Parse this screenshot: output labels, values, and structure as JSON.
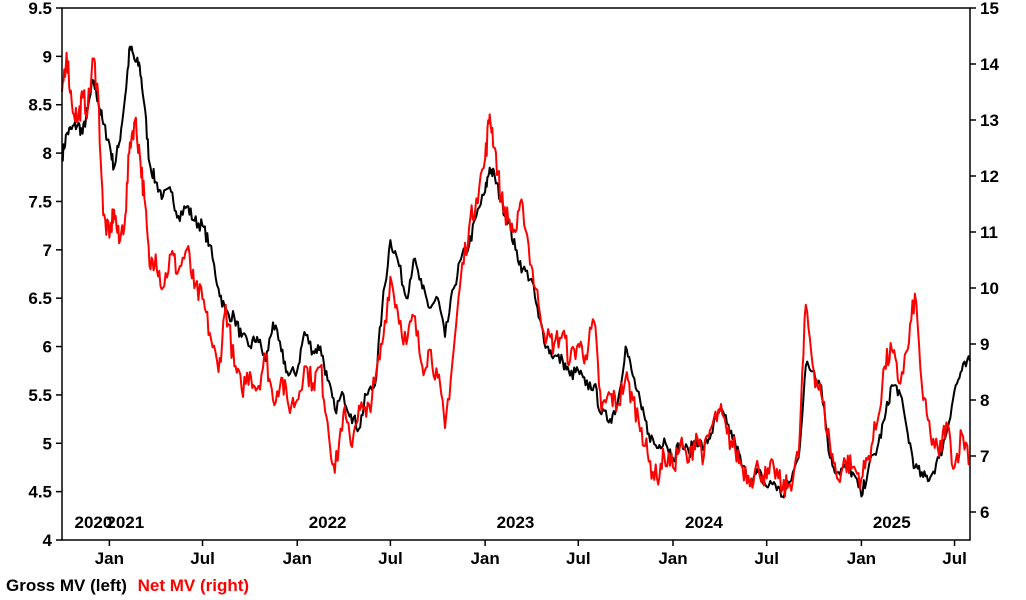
{
  "chart_data": {
    "type": "line",
    "title": "",
    "xlabel": "",
    "y_left": {
      "min": 4,
      "max": 9.5,
      "ticks": [
        "9.5",
        "9",
        "8.5",
        "8",
        "7.5",
        "7",
        "6.5",
        "6",
        "5.5",
        "5",
        "4.5",
        "4"
      ]
    },
    "y_right": {
      "min": 5.5,
      "max": 15,
      "ticks": [
        "15",
        "14",
        "13",
        "12",
        "11",
        "10",
        "9",
        "8",
        "7",
        "6"
      ]
    },
    "x_range": [
      "2020-10-01",
      "2025-07-31"
    ],
    "x_month_ticks": [
      {
        "date": "2021-01-01",
        "label": "Jan"
      },
      {
        "date": "2021-07-01",
        "label": "Jul"
      },
      {
        "date": "2022-01-01",
        "label": "Jan"
      },
      {
        "date": "2022-07-01",
        "label": "Jul"
      },
      {
        "date": "2023-01-01",
        "label": "Jan"
      },
      {
        "date": "2023-07-01",
        "label": "Jul"
      },
      {
        "date": "2024-01-01",
        "label": "Jan"
      },
      {
        "date": "2024-07-01",
        "label": "Jul"
      },
      {
        "date": "2025-01-01",
        "label": "Jan"
      },
      {
        "date": "2025-07-01",
        "label": "Jul"
      }
    ],
    "x_year_labels": [
      {
        "date": "2020-12-01",
        "label": "2020"
      },
      {
        "date": "2021-02-01",
        "label": "2021"
      },
      {
        "date": "2022-03-01",
        "label": "2022"
      },
      {
        "date": "2023-03-01",
        "label": "2023"
      },
      {
        "date": "2024-03-01",
        "label": "2024"
      },
      {
        "date": "2025-03-01",
        "label": "2025"
      }
    ],
    "legend": "bottom-left",
    "series": [
      {
        "name": "Gross MV (left)",
        "axis": "left",
        "color": "#000000",
        "points": [
          [
            "2020-10-01",
            7.95
          ],
          [
            "2020-10-10",
            8.2
          ],
          [
            "2020-10-20",
            8.25
          ],
          [
            "2020-11-01",
            8.3
          ],
          [
            "2020-11-10",
            8.2
          ],
          [
            "2020-11-20",
            8.45
          ],
          [
            "2020-12-01",
            8.75
          ],
          [
            "2020-12-10",
            8.55
          ],
          [
            "2020-12-20",
            8.3
          ],
          [
            "2021-01-01",
            8.1
          ],
          [
            "2021-01-10",
            7.85
          ],
          [
            "2021-01-20",
            8.1
          ],
          [
            "2021-02-01",
            8.6
          ],
          [
            "2021-02-10",
            9.1
          ],
          [
            "2021-02-20",
            8.95
          ],
          [
            "2021-03-01",
            8.9
          ],
          [
            "2021-03-10",
            8.5
          ],
          [
            "2021-03-20",
            7.9
          ],
          [
            "2021-04-01",
            7.7
          ],
          [
            "2021-04-15",
            7.55
          ],
          [
            "2021-05-01",
            7.6
          ],
          [
            "2021-05-15",
            7.35
          ],
          [
            "2021-06-01",
            7.45
          ],
          [
            "2021-06-15",
            7.3
          ],
          [
            "2021-07-01",
            7.25
          ],
          [
            "2021-07-15",
            7.05
          ],
          [
            "2021-08-01",
            6.6
          ],
          [
            "2021-08-15",
            6.35
          ],
          [
            "2021-09-01",
            6.3
          ],
          [
            "2021-09-15",
            6.1
          ],
          [
            "2021-10-01",
            6.0
          ],
          [
            "2021-10-15",
            6.1
          ],
          [
            "2021-11-01",
            5.85
          ],
          [
            "2021-11-15",
            6.25
          ],
          [
            "2021-12-01",
            5.95
          ],
          [
            "2021-12-15",
            5.7
          ],
          [
            "2022-01-01",
            5.75
          ],
          [
            "2022-01-15",
            6.15
          ],
          [
            "2022-02-01",
            5.95
          ],
          [
            "2022-02-15",
            6.0
          ],
          [
            "2022-03-01",
            5.65
          ],
          [
            "2022-03-15",
            5.35
          ],
          [
            "2022-04-01",
            5.5
          ],
          [
            "2022-04-15",
            5.3
          ],
          [
            "2022-05-01",
            5.15
          ],
          [
            "2022-05-15",
            5.5
          ],
          [
            "2022-06-01",
            5.6
          ],
          [
            "2022-06-15",
            6.4
          ],
          [
            "2022-07-01",
            7.1
          ],
          [
            "2022-07-15",
            6.9
          ],
          [
            "2022-08-01",
            6.5
          ],
          [
            "2022-08-15",
            6.9
          ],
          [
            "2022-09-01",
            6.6
          ],
          [
            "2022-09-15",
            6.4
          ],
          [
            "2022-10-01",
            6.5
          ],
          [
            "2022-10-15",
            6.1
          ],
          [
            "2022-11-01",
            6.6
          ],
          [
            "2022-11-15",
            6.9
          ],
          [
            "2022-12-01",
            7.05
          ],
          [
            "2022-12-15",
            7.35
          ],
          [
            "2023-01-01",
            7.6
          ],
          [
            "2023-01-10",
            7.85
          ],
          [
            "2023-01-20",
            7.75
          ],
          [
            "2023-02-01",
            7.5
          ],
          [
            "2023-02-15",
            7.3
          ],
          [
            "2023-03-01",
            7.0
          ],
          [
            "2023-03-15",
            6.8
          ],
          [
            "2023-04-01",
            6.7
          ],
          [
            "2023-04-15",
            6.3
          ],
          [
            "2023-05-01",
            6.0
          ],
          [
            "2023-05-15",
            5.9
          ],
          [
            "2023-06-01",
            5.85
          ],
          [
            "2023-06-15",
            5.7
          ],
          [
            "2023-07-01",
            5.75
          ],
          [
            "2023-07-15",
            5.6
          ],
          [
            "2023-08-01",
            5.6
          ],
          [
            "2023-08-15",
            5.3
          ],
          [
            "2023-09-01",
            5.25
          ],
          [
            "2023-09-15",
            5.4
          ],
          [
            "2023-10-01",
            6.0
          ],
          [
            "2023-10-15",
            5.7
          ],
          [
            "2023-11-01",
            5.35
          ],
          [
            "2023-11-15",
            5.1
          ],
          [
            "2023-12-01",
            4.95
          ],
          [
            "2023-12-15",
            5.05
          ],
          [
            "2024-01-01",
            4.85
          ],
          [
            "2024-01-15",
            5.0
          ],
          [
            "2024-02-01",
            4.9
          ],
          [
            "2024-02-15",
            5.05
          ],
          [
            "2024-03-01",
            4.95
          ],
          [
            "2024-03-15",
            5.1
          ],
          [
            "2024-04-01",
            5.35
          ],
          [
            "2024-04-15",
            5.2
          ],
          [
            "2024-05-01",
            5.0
          ],
          [
            "2024-05-15",
            4.75
          ],
          [
            "2024-06-01",
            4.6
          ],
          [
            "2024-06-15",
            4.7
          ],
          [
            "2024-07-01",
            4.55
          ],
          [
            "2024-07-15",
            4.6
          ],
          [
            "2024-08-01",
            4.45
          ],
          [
            "2024-08-15",
            4.6
          ],
          [
            "2024-09-01",
            4.85
          ],
          [
            "2024-09-15",
            5.8
          ],
          [
            "2024-10-01",
            5.75
          ],
          [
            "2024-10-15",
            5.6
          ],
          [
            "2024-11-01",
            4.85
          ],
          [
            "2024-11-15",
            4.7
          ],
          [
            "2024-12-01",
            4.75
          ],
          [
            "2024-12-15",
            4.7
          ],
          [
            "2025-01-01",
            4.45
          ],
          [
            "2025-01-15",
            4.75
          ],
          [
            "2025-02-01",
            4.95
          ],
          [
            "2025-02-15",
            5.25
          ],
          [
            "2025-03-01",
            5.6
          ],
          [
            "2025-03-15",
            5.55
          ],
          [
            "2025-04-01",
            5.1
          ],
          [
            "2025-04-15",
            4.75
          ],
          [
            "2025-05-01",
            4.65
          ],
          [
            "2025-05-15",
            4.65
          ],
          [
            "2025-06-01",
            4.85
          ],
          [
            "2025-06-15",
            5.1
          ],
          [
            "2025-07-01",
            5.55
          ],
          [
            "2025-07-15",
            5.75
          ],
          [
            "2025-07-31",
            5.85
          ]
        ]
      },
      {
        "name": "Net MV (right)",
        "axis": "right",
        "color": "#ff0000",
        "points": [
          [
            "2020-10-01",
            13.5
          ],
          [
            "2020-10-10",
            14.2
          ],
          [
            "2020-10-20",
            13.3
          ],
          [
            "2020-11-01",
            13.0
          ],
          [
            "2020-11-10",
            13.4
          ],
          [
            "2020-11-20",
            13.2
          ],
          [
            "2020-12-01",
            14.1
          ],
          [
            "2020-12-10",
            13.5
          ],
          [
            "2020-12-20",
            11.3
          ],
          [
            "2021-01-01",
            10.9
          ],
          [
            "2021-01-10",
            11.4
          ],
          [
            "2021-01-20",
            10.8
          ],
          [
            "2021-02-01",
            11.3
          ],
          [
            "2021-02-10",
            12.6
          ],
          [
            "2021-02-20",
            13.0
          ],
          [
            "2021-03-01",
            12.4
          ],
          [
            "2021-03-10",
            11.6
          ],
          [
            "2021-03-20",
            10.4
          ],
          [
            "2021-04-01",
            10.6
          ],
          [
            "2021-04-15",
            10.0
          ],
          [
            "2021-05-01",
            10.6
          ],
          [
            "2021-05-15",
            10.3
          ],
          [
            "2021-06-01",
            10.7
          ],
          [
            "2021-06-15",
            10.0
          ],
          [
            "2021-07-01",
            9.8
          ],
          [
            "2021-07-15",
            9.2
          ],
          [
            "2021-08-01",
            8.5
          ],
          [
            "2021-08-15",
            9.7
          ],
          [
            "2021-09-01",
            8.6
          ],
          [
            "2021-09-15",
            8.2
          ],
          [
            "2021-10-01",
            8.5
          ],
          [
            "2021-10-15",
            8.2
          ],
          [
            "2021-11-01",
            8.8
          ],
          [
            "2021-11-15",
            8.0
          ],
          [
            "2021-12-01",
            8.4
          ],
          [
            "2021-12-15",
            7.9
          ],
          [
            "2022-01-01",
            8.0
          ],
          [
            "2022-01-15",
            8.6
          ],
          [
            "2022-02-01",
            8.3
          ],
          [
            "2022-02-15",
            8.6
          ],
          [
            "2022-03-01",
            7.6
          ],
          [
            "2022-03-15",
            6.7
          ],
          [
            "2022-04-01",
            7.8
          ],
          [
            "2022-04-15",
            7.2
          ],
          [
            "2022-05-01",
            7.9
          ],
          [
            "2022-05-15",
            7.7
          ],
          [
            "2022-06-01",
            8.3
          ],
          [
            "2022-06-15",
            9.0
          ],
          [
            "2022-07-01",
            10.2
          ],
          [
            "2022-07-15",
            9.6
          ],
          [
            "2022-08-01",
            9.0
          ],
          [
            "2022-08-15",
            9.5
          ],
          [
            "2022-09-01",
            8.6
          ],
          [
            "2022-09-15",
            8.9
          ],
          [
            "2022-10-01",
            8.4
          ],
          [
            "2022-10-15",
            7.5
          ],
          [
            "2022-11-01",
            8.9
          ],
          [
            "2022-11-15",
            10.2
          ],
          [
            "2022-12-01",
            11.1
          ],
          [
            "2022-12-15",
            11.6
          ],
          [
            "2023-01-01",
            12.3
          ],
          [
            "2023-01-10",
            13.1
          ],
          [
            "2023-01-20",
            12.5
          ],
          [
            "2023-02-01",
            11.6
          ],
          [
            "2023-02-15",
            11.2
          ],
          [
            "2023-03-01",
            11.0
          ],
          [
            "2023-03-15",
            11.5
          ],
          [
            "2023-04-01",
            10.4
          ],
          [
            "2023-04-15",
            9.7
          ],
          [
            "2023-05-01",
            9.1
          ],
          [
            "2023-05-15",
            9.0
          ],
          [
            "2023-06-01",
            9.2
          ],
          [
            "2023-06-15",
            8.7
          ],
          [
            "2023-07-01",
            9.0
          ],
          [
            "2023-07-15",
            8.8
          ],
          [
            "2023-08-01",
            9.4
          ],
          [
            "2023-08-15",
            7.8
          ],
          [
            "2023-09-01",
            8.1
          ],
          [
            "2023-09-15",
            7.9
          ],
          [
            "2023-10-01",
            8.4
          ],
          [
            "2023-10-15",
            8.0
          ],
          [
            "2023-11-01",
            7.5
          ],
          [
            "2023-11-15",
            6.9
          ],
          [
            "2023-12-01",
            6.6
          ],
          [
            "2023-12-15",
            7.0
          ],
          [
            "2024-01-01",
            6.8
          ],
          [
            "2024-01-15",
            7.2
          ],
          [
            "2024-02-01",
            6.9
          ],
          [
            "2024-02-15",
            7.4
          ],
          [
            "2024-03-01",
            7.0
          ],
          [
            "2024-03-15",
            7.5
          ],
          [
            "2024-04-01",
            7.8
          ],
          [
            "2024-04-15",
            7.4
          ],
          [
            "2024-05-01",
            7.1
          ],
          [
            "2024-05-15",
            6.8
          ],
          [
            "2024-06-01",
            6.6
          ],
          [
            "2024-06-15",
            6.8
          ],
          [
            "2024-07-01",
            6.6
          ],
          [
            "2024-07-15",
            6.8
          ],
          [
            "2024-08-01",
            6.4
          ],
          [
            "2024-08-15",
            6.5
          ],
          [
            "2024-09-01",
            7.0
          ],
          [
            "2024-09-15",
            9.7
          ],
          [
            "2024-10-01",
            8.5
          ],
          [
            "2024-10-15",
            8.1
          ],
          [
            "2024-11-01",
            7.2
          ],
          [
            "2024-11-15",
            6.6
          ],
          [
            "2024-12-01",
            6.9
          ],
          [
            "2024-12-15",
            6.8
          ],
          [
            "2025-01-01",
            6.6
          ],
          [
            "2025-01-15",
            7.0
          ],
          [
            "2025-02-01",
            7.6
          ],
          [
            "2025-02-15",
            8.6
          ],
          [
            "2025-03-01",
            8.9
          ],
          [
            "2025-03-15",
            8.3
          ],
          [
            "2025-04-01",
            8.9
          ],
          [
            "2025-04-15",
            9.9
          ],
          [
            "2025-05-01",
            8.0
          ],
          [
            "2025-05-15",
            7.4
          ],
          [
            "2025-06-01",
            7.0
          ],
          [
            "2025-06-15",
            7.6
          ],
          [
            "2025-07-01",
            6.8
          ],
          [
            "2025-07-15",
            7.4
          ],
          [
            "2025-07-31",
            7.0
          ]
        ]
      }
    ]
  }
}
